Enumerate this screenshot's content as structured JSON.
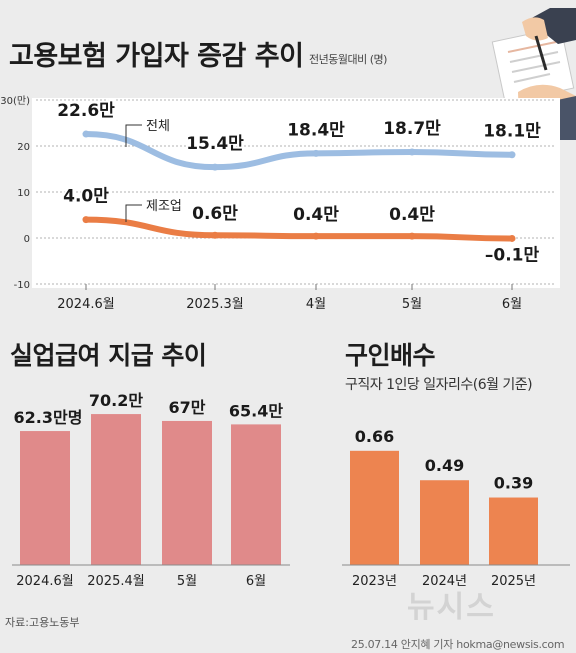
{
  "header": {
    "title": "고용보험 가입자 증감 추이",
    "unit_note": "전년동월대비 (명)"
  },
  "chart_data": [
    {
      "type": "line",
      "title": "고용보험 가입자 증감 추이",
      "subtitle": "전년동월대비 (명)",
      "x": [
        "2024.6월",
        "2025.3월",
        "4월",
        "5월",
        "6월"
      ],
      "y_ticks": [
        "30(만)",
        "20",
        "10",
        "0",
        "-10"
      ],
      "ylim": [
        -10,
        30
      ],
      "grid": true,
      "series": [
        {
          "name": "전체",
          "values": [
            22.6,
            15.4,
            18.4,
            18.7,
            18.1
          ],
          "labels": [
            "22.6만",
            "15.4만",
            "18.4만",
            "18.7만",
            "18.1만"
          ],
          "color": "#9dbde2"
        },
        {
          "name": "제조업",
          "values": [
            4.0,
            0.6,
            0.4,
            0.4,
            -0.1
          ],
          "labels": [
            "4.0만",
            "0.6만",
            "0.4만",
            "0.4만",
            "–0.1만"
          ],
          "color": "#ea7d45"
        }
      ]
    },
    {
      "type": "bar",
      "title": "실업급여 지급 추이",
      "categories": [
        "2024.6월",
        "2025.4월",
        "5월",
        "6월"
      ],
      "values": [
        62.3,
        70.2,
        67,
        65.4
      ],
      "labels": [
        "62.3만명",
        "70.2만",
        "67만",
        "65.4만"
      ],
      "color": "#e08a8a"
    },
    {
      "type": "bar",
      "title": "구인배수",
      "subtitle": "구직자 1인당 일자리수(6월 기준)",
      "categories": [
        "2023년",
        "2024년",
        "2025년"
      ],
      "values": [
        0.66,
        0.49,
        0.39
      ],
      "labels": [
        "0.66",
        "0.49",
        "0.39"
      ],
      "color": "#ed8450"
    }
  ],
  "footer": {
    "source": "자료:고용노동부",
    "credit": "25.07.14 안지혜 기자 hokma@newsis.com",
    "watermark": "뉴시스"
  },
  "colors": {
    "background": "#ececec",
    "panel": "#ffffff",
    "total_line": "#9dbde2",
    "manufacturing_line": "#ea7d45",
    "benefit_bar": "#e08a8a",
    "job_ratio_bar": "#ed8450"
  },
  "decoration": {
    "illustration": "hands-writing-on-document-icon"
  }
}
